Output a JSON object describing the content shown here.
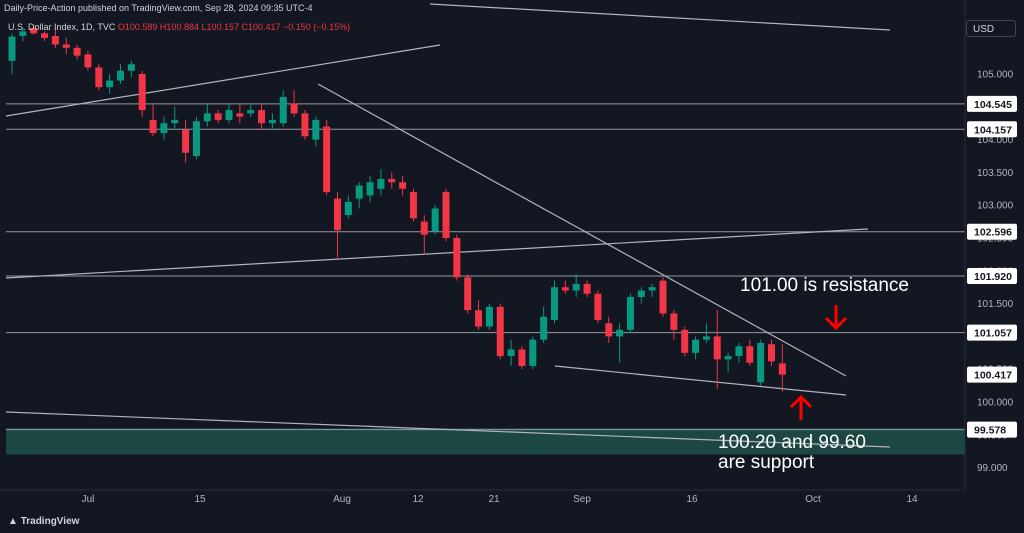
{
  "header": {
    "publish_info": "Daily-Price-Action published on TradingView.com, Sep 28, 2024 09:35 UTC-4"
  },
  "legend": {
    "symbol": "U.S. Dollar Index, 1D, TVC",
    "ohlc": "O100.589  H100.884  L100.157  C100.417  −0.150 (−0.15%)"
  },
  "currency_button": "USD",
  "brand": "TradingView",
  "annotations": {
    "resistance": "101.00 is resistance",
    "support_line1": "100.20 and 99.60",
    "support_line2": "are support"
  },
  "colors": {
    "bull": "#089981",
    "bear": "#f23645",
    "background": "#131722",
    "zone": "#1e4d46",
    "arrow": "#ff0000"
  },
  "chart_data": {
    "type": "candlestick",
    "y_axis_ticks": [
      "105.000",
      "104.500",
      "104.000",
      "103.500",
      "103.000",
      "102.500",
      "102.000",
      "101.500",
      "101.000",
      "100.500",
      "100.000",
      "99.500",
      "99.000"
    ],
    "x_axis_labels": [
      "Jul",
      "15",
      "Aug",
      "12",
      "21",
      "Sep",
      "16",
      "Oct",
      "14"
    ],
    "price_levels": [
      {
        "label": "104.545",
        "value": 104.545
      },
      {
        "label": "104.157",
        "value": 104.157
      },
      {
        "label": "102.596",
        "value": 102.596
      },
      {
        "label": "101.920",
        "value": 101.92
      },
      {
        "label": "101.057",
        "value": 101.057
      },
      {
        "label": "100.417",
        "value": 100.417,
        "current": true
      },
      {
        "label": "99.578",
        "value": 99.578
      }
    ],
    "support_zone": [
      99.2,
      99.6
    ],
    "candles": [
      [
        105.2,
        105.62,
        105.0,
        105.57
      ],
      [
        105.58,
        105.7,
        105.5,
        105.65
      ],
      [
        105.7,
        105.75,
        105.6,
        105.62
      ],
      [
        105.62,
        105.65,
        105.5,
        105.55
      ],
      [
        105.58,
        105.7,
        105.4,
        105.45
      ],
      [
        105.45,
        105.55,
        105.3,
        105.4
      ],
      [
        105.4,
        105.45,
        105.22,
        105.28
      ],
      [
        105.3,
        105.35,
        105.05,
        105.1
      ],
      [
        105.1,
        105.15,
        104.75,
        104.8
      ],
      [
        104.8,
        105.0,
        104.7,
        104.9
      ],
      [
        104.9,
        105.15,
        104.85,
        105.05
      ],
      [
        105.05,
        105.2,
        104.95,
        105.15
      ],
      [
        105.0,
        105.05,
        104.35,
        104.45
      ],
      [
        104.3,
        104.55,
        104.05,
        104.1
      ],
      [
        104.1,
        104.35,
        104.0,
        104.25
      ],
      [
        104.25,
        104.5,
        104.15,
        104.3
      ],
      [
        104.15,
        104.3,
        103.65,
        103.8
      ],
      [
        103.75,
        104.35,
        103.7,
        104.28
      ],
      [
        104.28,
        104.55,
        104.2,
        104.4
      ],
      [
        104.4,
        104.45,
        104.25,
        104.3
      ],
      [
        104.3,
        104.55,
        104.25,
        104.45
      ],
      [
        104.4,
        104.55,
        104.25,
        104.35
      ],
      [
        104.4,
        104.55,
        104.35,
        104.45
      ],
      [
        104.45,
        104.55,
        104.15,
        104.25
      ],
      [
        104.25,
        104.4,
        104.15,
        104.3
      ],
      [
        104.25,
        104.75,
        104.2,
        104.65
      ],
      [
        104.55,
        104.75,
        104.35,
        104.4
      ],
      [
        104.4,
        104.45,
        104.0,
        104.05
      ],
      [
        104.0,
        104.35,
        103.9,
        104.3
      ],
      [
        104.2,
        104.3,
        103.15,
        103.2
      ],
      [
        103.1,
        103.2,
        102.2,
        102.62
      ],
      [
        102.85,
        103.15,
        102.8,
        103.05
      ],
      [
        103.1,
        103.35,
        102.95,
        103.3
      ],
      [
        103.15,
        103.45,
        103.05,
        103.35
      ],
      [
        103.25,
        103.55,
        103.15,
        103.4
      ],
      [
        103.4,
        103.5,
        103.25,
        103.35
      ],
      [
        103.35,
        103.45,
        103.15,
        103.25
      ],
      [
        103.2,
        103.25,
        102.75,
        102.8
      ],
      [
        102.75,
        102.85,
        102.25,
        102.55
      ],
      [
        102.6,
        103.0,
        102.55,
        102.95
      ],
      [
        103.2,
        103.25,
        102.45,
        102.5
      ],
      [
        102.5,
        102.55,
        101.85,
        101.9
      ],
      [
        101.9,
        101.95,
        101.35,
        101.4
      ],
      [
        101.4,
        101.55,
        101.1,
        101.15
      ],
      [
        101.15,
        101.5,
        101.1,
        101.45
      ],
      [
        101.45,
        101.5,
        100.65,
        100.7
      ],
      [
        100.7,
        100.95,
        100.55,
        100.8
      ],
      [
        100.8,
        100.85,
        100.5,
        100.55
      ],
      [
        100.55,
        101.0,
        100.5,
        100.95
      ],
      [
        100.95,
        101.45,
        100.9,
        101.3
      ],
      [
        101.25,
        101.85,
        101.2,
        101.75
      ],
      [
        101.75,
        101.85,
        101.65,
        101.7
      ],
      [
        101.7,
        101.95,
        101.6,
        101.8
      ],
      [
        101.8,
        101.85,
        101.6,
        101.65
      ],
      [
        101.65,
        101.7,
        101.2,
        101.25
      ],
      [
        101.2,
        101.3,
        100.9,
        101.0
      ],
      [
        101.0,
        101.2,
        100.6,
        101.1
      ],
      [
        101.1,
        101.65,
        101.05,
        101.6
      ],
      [
        101.6,
        101.75,
        101.5,
        101.7
      ],
      [
        101.7,
        101.8,
        101.6,
        101.75
      ],
      [
        101.85,
        101.9,
        101.3,
        101.35
      ],
      [
        101.35,
        101.4,
        100.95,
        101.1
      ],
      [
        101.1,
        101.15,
        100.7,
        100.75
      ],
      [
        100.75,
        101.0,
        100.65,
        100.95
      ],
      [
        100.95,
        101.2,
        100.9,
        101.0
      ],
      [
        101.0,
        101.4,
        100.2,
        100.65
      ],
      [
        100.65,
        100.75,
        100.45,
        100.7
      ],
      [
        100.7,
        100.9,
        100.6,
        100.85
      ],
      [
        100.85,
        100.95,
        100.55,
        100.6
      ],
      [
        100.3,
        100.95,
        100.25,
        100.9
      ],
      [
        100.88,
        100.95,
        100.55,
        100.62
      ],
      [
        100.589,
        100.884,
        100.157,
        100.417
      ]
    ]
  }
}
